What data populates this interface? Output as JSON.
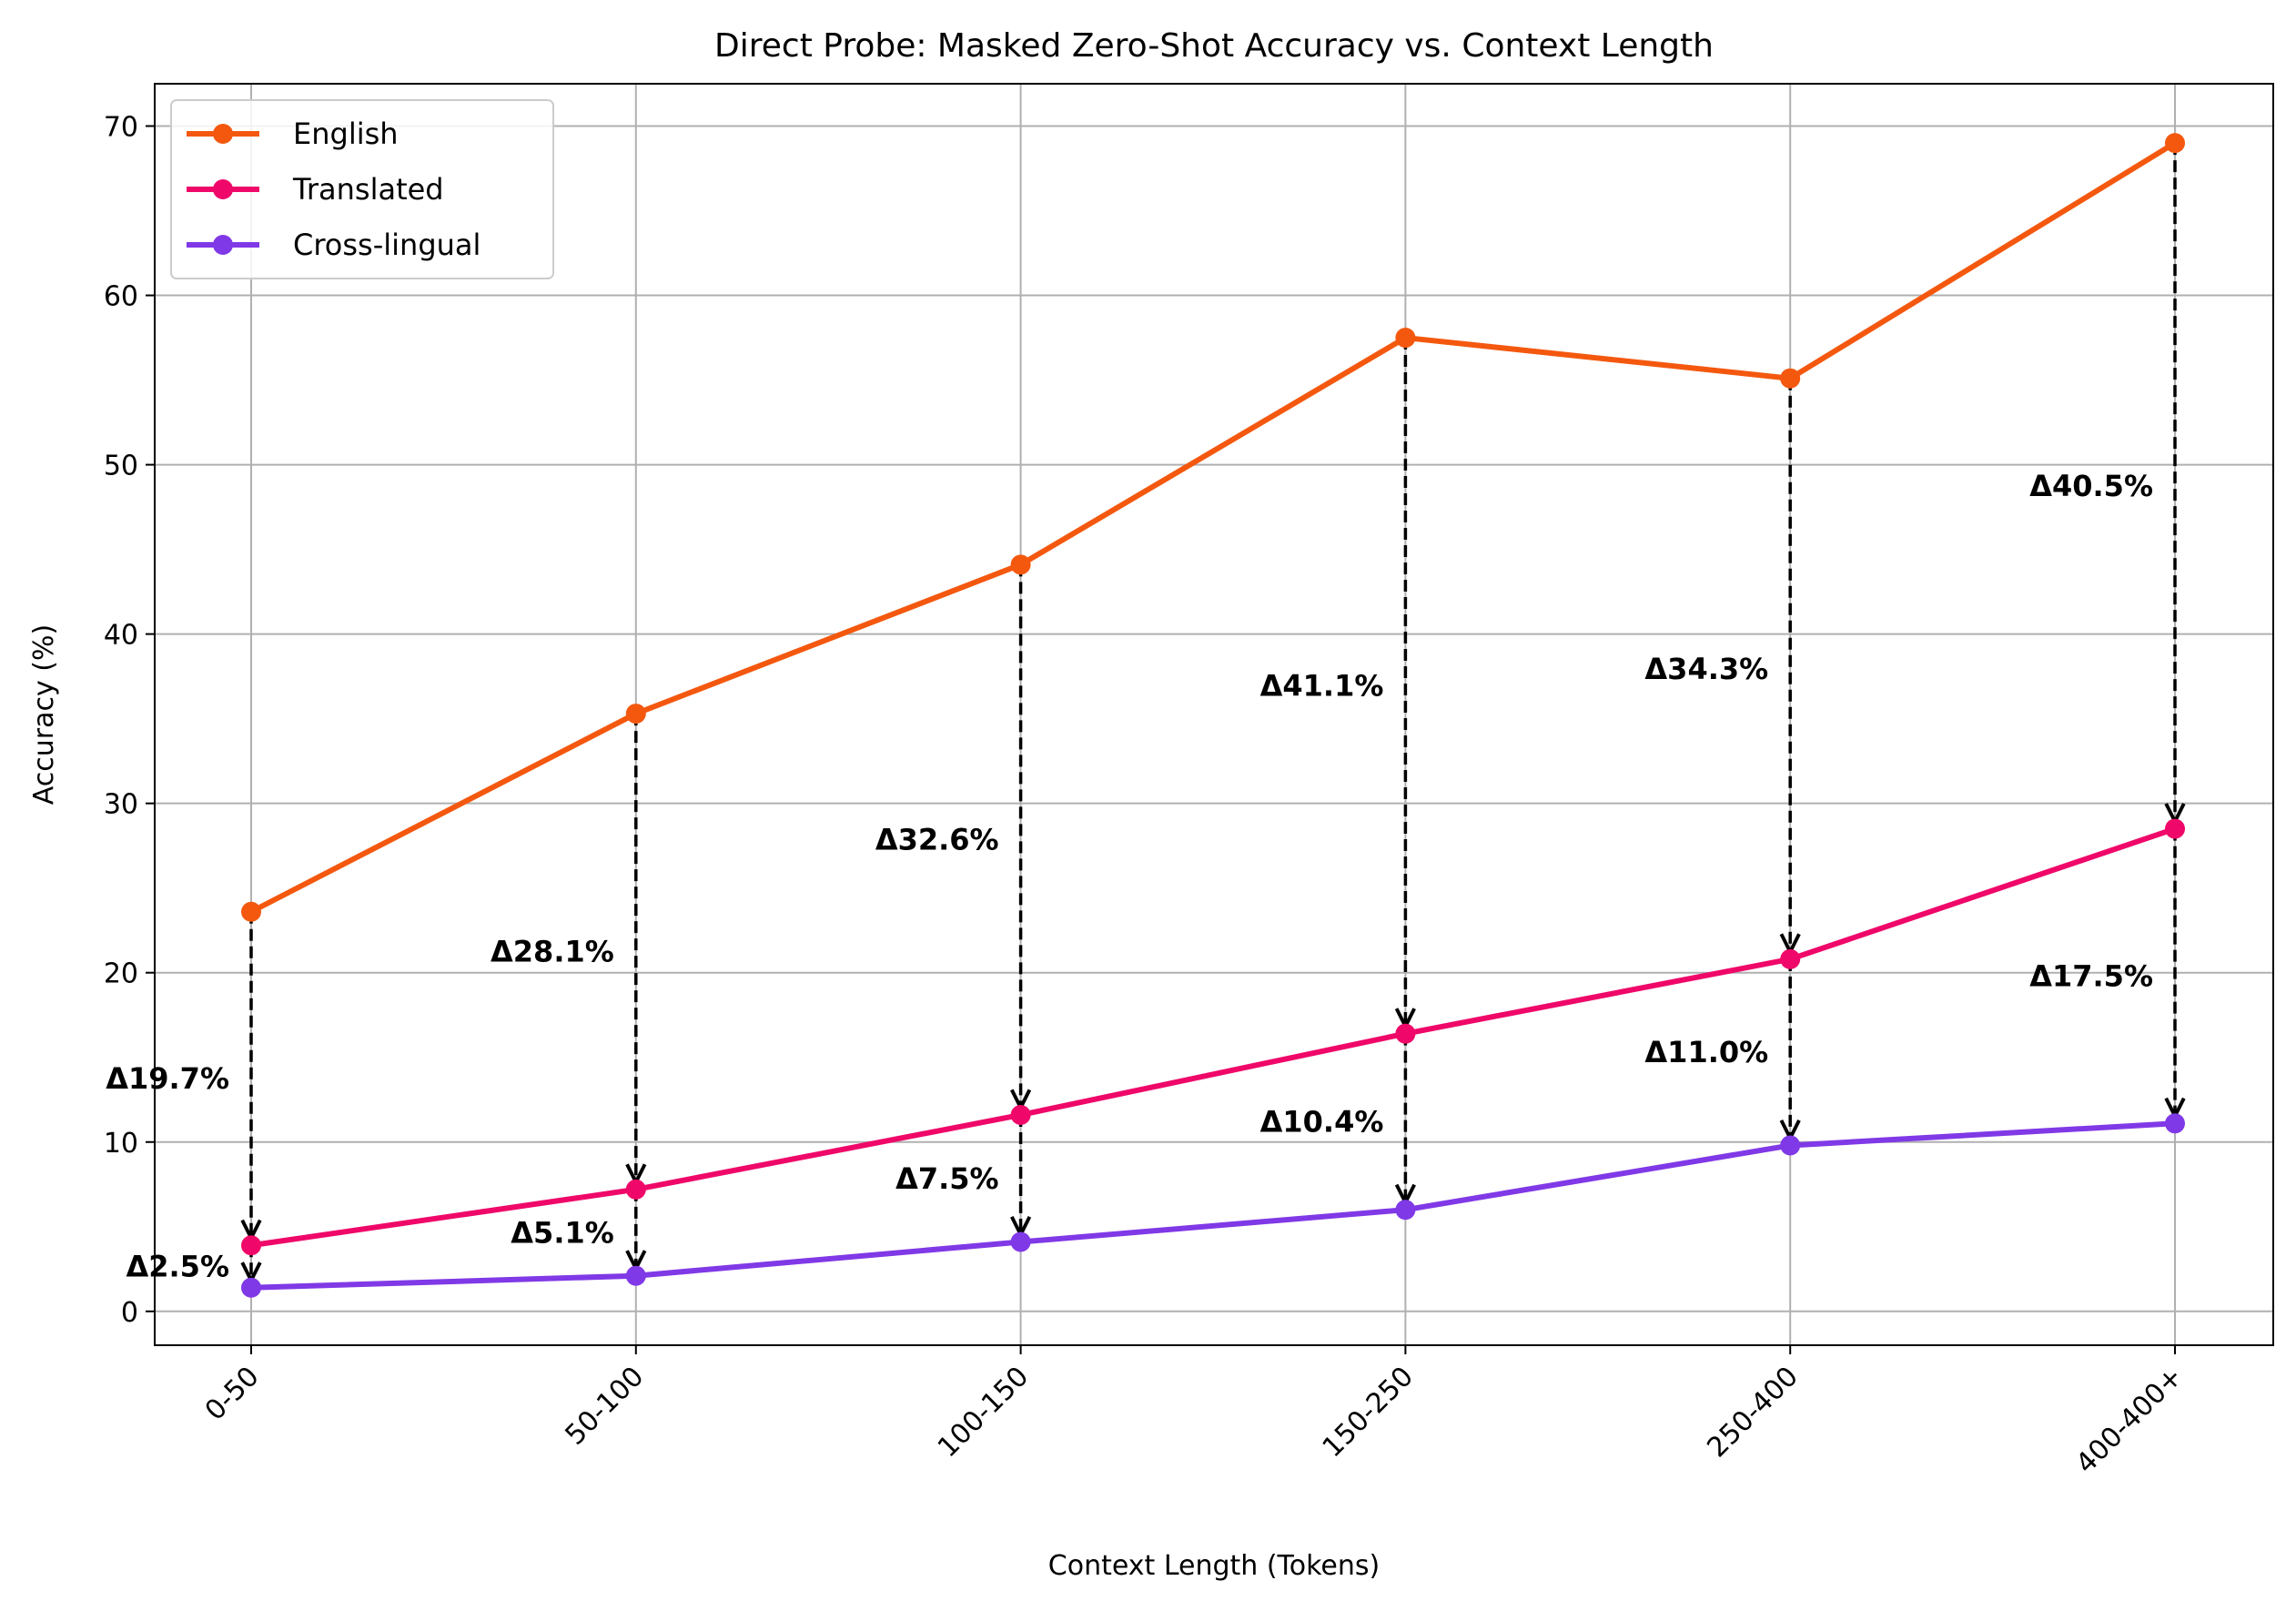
{
  "chart_data": {
    "type": "line",
    "title": "Direct Probe: Masked Zero-Shot Accuracy vs. Context Length",
    "xlabel": "Context Length (Tokens)",
    "ylabel": "Accuracy (%)",
    "categories": [
      "0-50",
      "50-100",
      "100-150",
      "150-250",
      "250-400",
      "400-400+"
    ],
    "ylim": [
      -2,
      72.5
    ],
    "yticks": [
      0,
      10,
      20,
      30,
      40,
      50,
      60,
      70
    ],
    "grid": true,
    "legend_position": "top-left",
    "series": [
      {
        "name": "English",
        "color": "#f4580f",
        "values": [
          23.6,
          35.3,
          44.1,
          57.5,
          55.1,
          69.0
        ]
      },
      {
        "name": "Translated",
        "color": "#ef0869",
        "values": [
          3.9,
          7.2,
          11.6,
          16.4,
          20.8,
          28.5
        ]
      },
      {
        "name": "Cross-lingual",
        "color": "#8039e6",
        "values": [
          1.4,
          2.1,
          4.1,
          6.0,
          9.8,
          11.1
        ]
      }
    ],
    "annotations": {
      "english_vs_translated": [
        "Δ19.7%",
        "Δ28.1%",
        "Δ32.6%",
        "Δ41.1%",
        "Δ34.3%",
        "Δ40.5%"
      ],
      "translated_vs_crosslingual": [
        "Δ2.5%",
        "Δ5.1%",
        "Δ7.5%",
        "Δ10.4%",
        "Δ11.0%",
        "Δ17.5%"
      ]
    }
  }
}
